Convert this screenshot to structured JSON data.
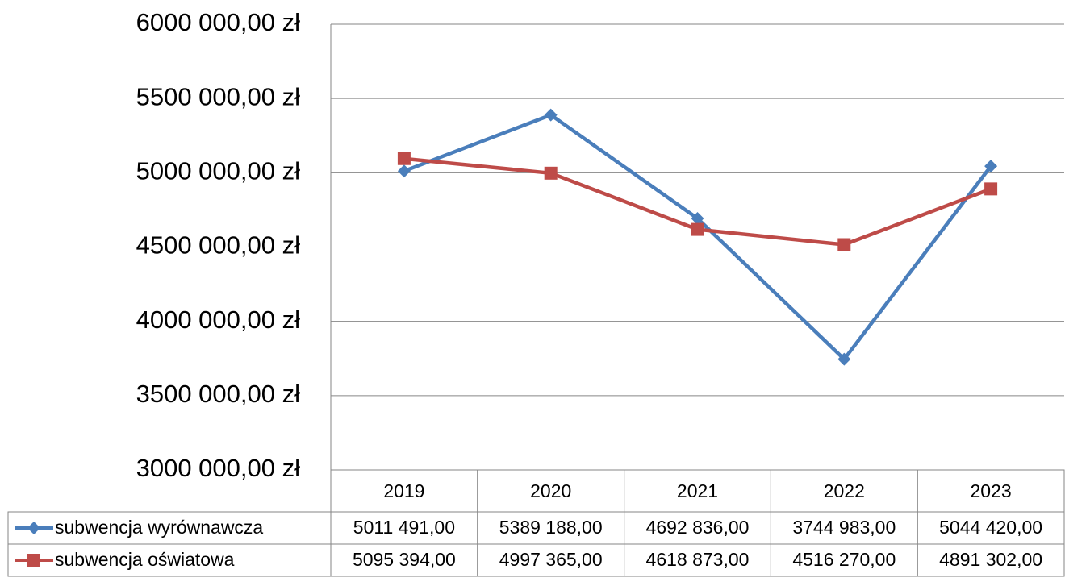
{
  "chart_data": {
    "type": "line",
    "categories": [
      "2019",
      "2020",
      "2021",
      "2022",
      "2023"
    ],
    "series": [
      {
        "name": "subwencja wyrównawcza",
        "color": "#4a7ebb",
        "marker": "diamond",
        "values": [
          5011491,
          5389188,
          4692836,
          3744983,
          5044420
        ],
        "value_labels": [
          "5011 491,00",
          "5389 188,00",
          "4692 836,00",
          "3744 983,00",
          "5044 420,00"
        ]
      },
      {
        "name": "subwencja oświatowa",
        "color": "#be4b48",
        "marker": "square",
        "values": [
          5095394,
          4997365,
          4618873,
          4516270,
          4891302
        ],
        "value_labels": [
          "5095 394,00",
          "4997 365,00",
          "4618 873,00",
          "4516 270,00",
          "4891 302,00"
        ]
      }
    ],
    "ylim": [
      3000000,
      6000000
    ],
    "yticks": [
      {
        "value": 3000000,
        "label": "3000 000,00 zł"
      },
      {
        "value": 3500000,
        "label": "3500 000,00 zł"
      },
      {
        "value": 4000000,
        "label": "4000 000,00 zł"
      },
      {
        "value": 4500000,
        "label": "4500 000,00 zł"
      },
      {
        "value": 5000000,
        "label": "5000 000,00 zł"
      },
      {
        "value": 5500000,
        "label": "5500 000,00 zł"
      },
      {
        "value": 6000000,
        "label": "6000 000,00 zł"
      }
    ],
    "grid": true,
    "data_table": true
  }
}
